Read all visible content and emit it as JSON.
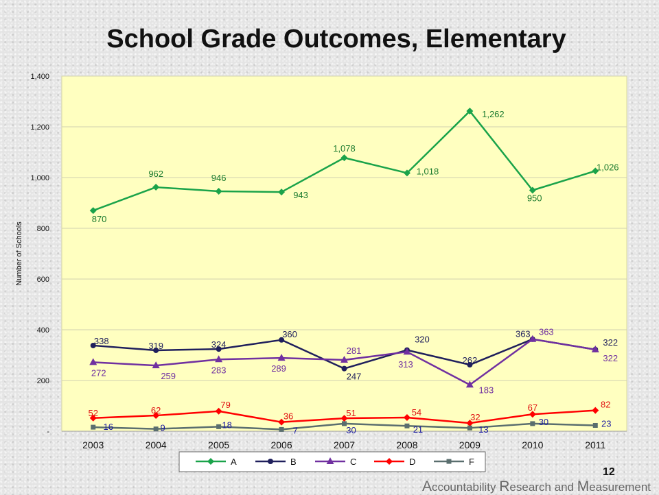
{
  "title": "School Grade Outcomes, Elementary",
  "page_number": "12",
  "footer": {
    "w1_cap": "A",
    "w1_rest": "ccountability ",
    "w2_cap": "R",
    "w2_rest": "esearch and ",
    "w3_cap": "M",
    "w3_rest": "easurement"
  },
  "chart_data": {
    "type": "line",
    "title": "School Grade Outcomes, Elementary",
    "xlabel": "",
    "ylabel": "Number of Schools",
    "ylim": [
      0,
      1400
    ],
    "yticks": [
      {
        "value": 0,
        "label": "-"
      },
      {
        "value": 200,
        "label": "200"
      },
      {
        "value": 400,
        "label": "400"
      },
      {
        "value": 600,
        "label": "600"
      },
      {
        "value": 800,
        "label": "800"
      },
      {
        "value": 1000,
        "label": "1,000"
      },
      {
        "value": 1200,
        "label": "1,200"
      },
      {
        "value": 1400,
        "label": "1,400"
      }
    ],
    "categories": [
      "2003",
      "2004",
      "2005",
      "2006",
      "2007",
      "2008",
      "2009",
      "2010",
      "2011"
    ],
    "grid": true,
    "legend_position": "bottom",
    "plot_background": "#ffffc0",
    "series": [
      {
        "name": "A",
        "color": "#1aa34a",
        "marker": "diamond",
        "label_color": "#1a7a2e",
        "values": [
          870,
          962,
          946,
          943,
          1078,
          1018,
          1262,
          950,
          1026
        ],
        "labels": [
          "870",
          "962",
          "946",
          "943",
          "1,078",
          "1,018",
          "1,262",
          "950",
          "1,026"
        ]
      },
      {
        "name": "B",
        "color": "#1f1f5c",
        "marker": "circle",
        "label_color": "#1f1f5c",
        "values": [
          338,
          319,
          324,
          360,
          247,
          320,
          262,
          363,
          322
        ],
        "labels": [
          "338",
          "319",
          "324",
          "360",
          "247",
          "320",
          "262",
          "363",
          "322"
        ]
      },
      {
        "name": "C",
        "color": "#7030a0",
        "marker": "triangle",
        "label_color": "#7030a0",
        "values": [
          272,
          259,
          283,
          289,
          281,
          313,
          183,
          363,
          322
        ],
        "labels": [
          "272",
          "259",
          "283",
          "289",
          "281",
          "313",
          "183",
          "363",
          "322"
        ]
      },
      {
        "name": "D",
        "color": "#ff0000",
        "marker": "diamond",
        "label_color": "#e01010",
        "values": [
          52,
          62,
          79,
          36,
          51,
          54,
          32,
          67,
          82
        ],
        "labels": [
          "52",
          "62",
          "79",
          "36",
          "51",
          "54",
          "32",
          "67",
          "82"
        ]
      },
      {
        "name": "F",
        "color": "#5a6e6e",
        "marker": "square",
        "label_color": "#1a1aa0",
        "values": [
          16,
          9,
          18,
          7,
          30,
          21,
          13,
          30,
          23
        ],
        "labels": [
          "16",
          "9",
          "18",
          "7",
          "30",
          "21",
          "13",
          "30",
          "23"
        ]
      }
    ]
  }
}
